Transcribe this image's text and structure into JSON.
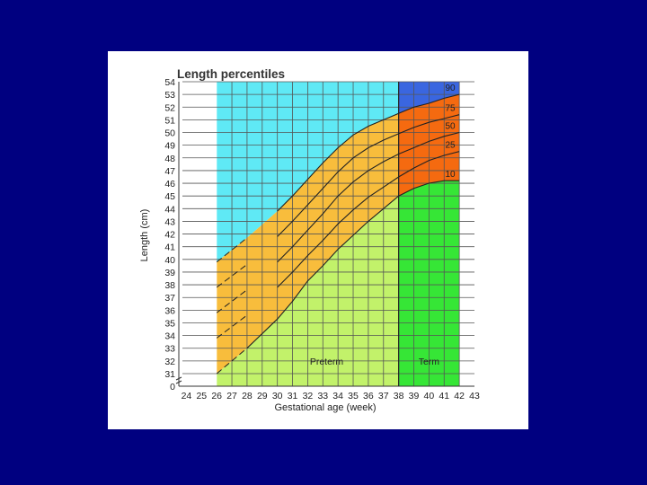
{
  "chart_data": {
    "type": "line",
    "title": "Length percentiles",
    "xlabel": "Gestational age (week)",
    "ylabel": "Length (cm)",
    "x_ticks": [
      24,
      25,
      26,
      27,
      28,
      29,
      30,
      31,
      32,
      33,
      34,
      35,
      36,
      37,
      38,
      39,
      40,
      41,
      42,
      43
    ],
    "y_ticks": [
      54,
      53,
      52,
      51,
      50,
      49,
      48,
      47,
      46,
      45,
      44,
      43,
      42,
      41,
      40,
      39,
      38,
      37,
      36,
      35,
      34,
      33,
      32,
      31,
      0
    ],
    "xlim": [
      23.5,
      43
    ],
    "ylim": [
      30.3,
      54
    ],
    "axis_break": true,
    "grid": true,
    "zones": [
      {
        "name": "Preterm",
        "x_range": [
          26,
          38
        ]
      },
      {
        "name": "Term",
        "x_range": [
          38,
          42
        ]
      }
    ],
    "colors": {
      "above_range_preterm": "#5fe9f5",
      "above_range_term": "#3a66e0",
      "range_preterm": "#f8bd3c",
      "range_term": "#f56a10",
      "below_range_preterm": "#c2f26a",
      "below_range_term": "#36e636"
    },
    "series": [
      {
        "name": "90",
        "x": [
          26,
          28,
          30,
          31,
          32,
          33,
          34,
          35,
          36,
          37,
          38,
          39,
          40,
          41,
          42
        ],
        "y": [
          39.8,
          41.7,
          43.8,
          45.0,
          46.3,
          47.6,
          48.8,
          49.8,
          50.5,
          51.0,
          51.5,
          52.0,
          52.3,
          52.7,
          53.0
        ]
      },
      {
        "name": "75",
        "x": [
          26,
          28,
          30,
          31,
          32,
          33,
          34,
          35,
          36,
          37,
          38,
          39,
          40,
          41,
          42
        ],
        "y": [
          37.8,
          39.6,
          41.8,
          43.0,
          44.3,
          45.6,
          46.9,
          48.0,
          48.8,
          49.4,
          49.9,
          50.4,
          50.8,
          51.1,
          51.4
        ]
      },
      {
        "name": "50",
        "x": [
          26,
          28,
          30,
          31,
          32,
          33,
          34,
          35,
          36,
          37,
          38,
          39,
          40,
          41,
          42
        ],
        "y": [
          35.8,
          37.6,
          39.8,
          41.0,
          42.3,
          43.6,
          45.0,
          46.1,
          47.0,
          47.7,
          48.3,
          48.8,
          49.3,
          49.7,
          50.0
        ]
      },
      {
        "name": "25",
        "x": [
          26,
          28,
          30,
          31,
          32,
          33,
          34,
          35,
          36,
          37,
          38,
          39,
          40,
          41,
          42
        ],
        "y": [
          33.8,
          35.6,
          37.8,
          39.0,
          40.3,
          41.5,
          42.8,
          43.9,
          44.9,
          45.7,
          46.5,
          47.2,
          47.8,
          48.2,
          48.5
        ]
      },
      {
        "name": "10",
        "x": [
          26,
          28,
          30,
          31,
          32,
          33,
          34,
          35,
          36,
          37,
          38,
          39,
          40,
          41,
          42
        ],
        "y": [
          31.0,
          33.0,
          35.3,
          36.7,
          38.3,
          39.5,
          40.8,
          41.9,
          43.0,
          44.0,
          45.0,
          45.6,
          46.0,
          46.2,
          46.2
        ]
      }
    ]
  }
}
